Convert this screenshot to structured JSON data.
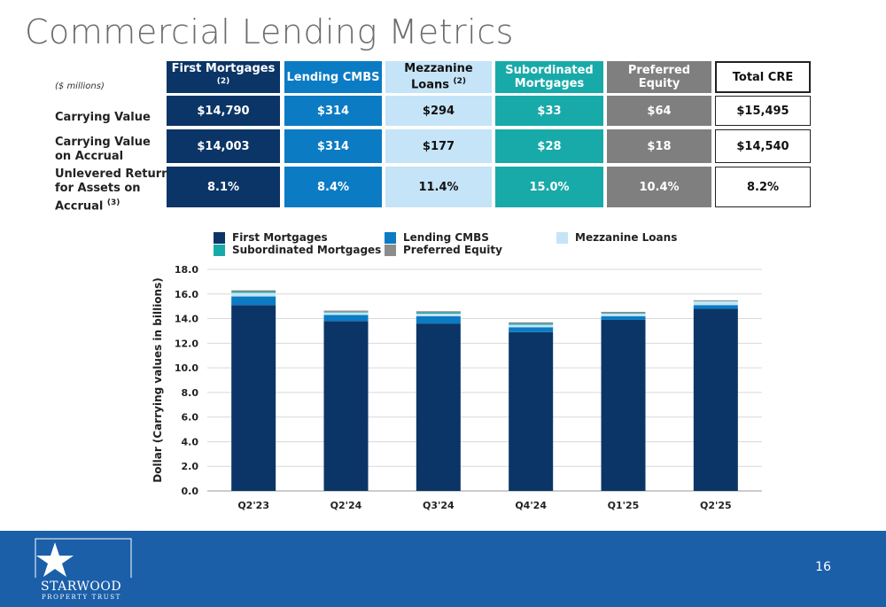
{
  "page": {
    "title": "Commercial Lending Metrics",
    "page_number": "16"
  },
  "table": {
    "units": "($ millions)",
    "headers": {
      "first_mortgages": "First Mortgages",
      "first_mortgages_note": "(2)",
      "lending_cmbs": "Lending CMBS",
      "mezz_line1": "Mezzanine",
      "mezz_line2": "Loans",
      "mezz_note": "(2)",
      "sub_line1": "Subordinated",
      "sub_line2": "Mortgages",
      "preferred_equity": "Preferred Equity",
      "total_cre": "Total CRE"
    },
    "row_labels": {
      "carrying_value": "Carrying Value",
      "cv_accrual_line1": "Carrying Value",
      "cv_accrual_line2": "on Accrual",
      "ur_line1": "Unlevered Return",
      "ur_line2": "for Assets on",
      "ur_line3": "Accrual",
      "ur_note": "(3)"
    },
    "carrying_value": {
      "fm": "$14,790",
      "cmbs": "$314",
      "mezz": "$294",
      "sub": "$33",
      "pe": "$64",
      "total": "$15,495"
    },
    "carrying_value_accrual": {
      "fm": "$14,003",
      "cmbs": "$314",
      "mezz": "$177",
      "sub": "$28",
      "pe": "$18",
      "total": "$14,540"
    },
    "unlevered_return": {
      "fm": "8.1%",
      "cmbs": "8.4%",
      "mezz": "11.4%",
      "sub": "15.0%",
      "pe": "10.4%",
      "total": "8.2%"
    }
  },
  "colors": {
    "first_mortgages": "#0b3566",
    "lending_cmbs": "#0b7bc4",
    "mezzanine_loans": "#c5e4f7",
    "subordinated_mortgages": "#18aaa9",
    "preferred_equity": "#8c8c8c"
  },
  "brand": {
    "name": "STARWOOD",
    "tagline": "PROPERTY TRUST"
  },
  "chart_data": {
    "type": "bar",
    "stacked": true,
    "categories": [
      "Q2'23",
      "Q2'24",
      "Q3'24",
      "Q4'24",
      "Q1'25",
      "Q2'25"
    ],
    "series": [
      {
        "name": "First Mortgages",
        "values": [
          15.1,
          13.8,
          13.6,
          12.9,
          13.9,
          14.8
        ]
      },
      {
        "name": "Lending CMBS",
        "values": [
          0.7,
          0.5,
          0.6,
          0.4,
          0.3,
          0.3
        ]
      },
      {
        "name": "Mezzanine Loans",
        "values": [
          0.3,
          0.2,
          0.2,
          0.2,
          0.2,
          0.3
        ]
      },
      {
        "name": "Subordinated Mortgages",
        "values": [
          0.1,
          0.05,
          0.1,
          0.1,
          0.05,
          0.03
        ]
      },
      {
        "name": "Preferred Equity",
        "values": [
          0.1,
          0.1,
          0.1,
          0.1,
          0.1,
          0.06
        ]
      }
    ],
    "ylabel": "Dollar (Carrying values in billions)",
    "ylim": [
      0,
      18
    ],
    "yticks": [
      "0.0",
      "2.0",
      "4.0",
      "6.0",
      "8.0",
      "10.0",
      "12.0",
      "14.0",
      "16.0",
      "18.0"
    ],
    "legend_position": "top",
    "grid": true
  }
}
